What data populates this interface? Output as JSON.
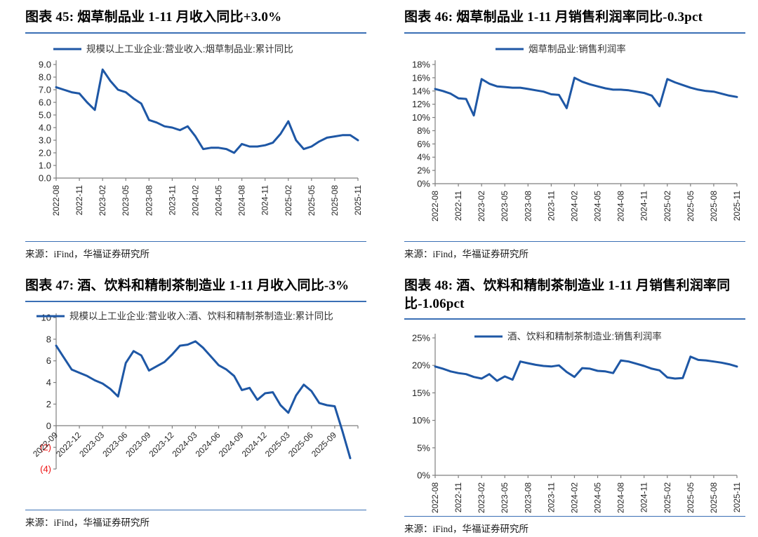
{
  "colors": {
    "line": "#1e57a5",
    "rule": "#3a6fb5",
    "axis": "#7f7f7f",
    "tick_text": "#262626",
    "negative_text": "#ee1111",
    "legend_text": "#333333"
  },
  "panels": [
    {
      "title": "图表 45:  烟草制品业 1-11 月收入同比+3.0%",
      "source": "来源：iFind，华福证券研究所"
    },
    {
      "title": "图表 46:  烟草制品业 1-11 月销售利润率同比-0.3pct",
      "source": "来源：iFind，华福证券研究所"
    },
    {
      "title": "图表 47:  酒、饮料和精制茶制造业 1-11 月收入同比-3%",
      "source": "来源：iFind，华福证券研究所"
    },
    {
      "title": "图表 48:  酒、饮料和精制茶制造业 1-11 月销售利润率同比-1.06pct",
      "source": "来源：iFind，华福证券研究所"
    }
  ],
  "chart_data": [
    {
      "type": "line",
      "title": "烟草制品业 1-11 月收入同比+3.0%",
      "legend": "规模以上工业企业:营业收入:烟草制品业:累计同比",
      "tick_labels": [
        "2022-08",
        "2022-11",
        "2023-02",
        "2023-05",
        "2023-08",
        "2023-11",
        "2024-02",
        "2024-05",
        "2024-08",
        "2024-11",
        "2025-02",
        "2025-05",
        "2025-08",
        "2025-11"
      ],
      "tick_every": 3,
      "values": [
        7.2,
        7.0,
        6.8,
        6.7,
        6.0,
        5.4,
        8.6,
        7.7,
        7.0,
        6.8,
        6.3,
        5.9,
        4.6,
        4.4,
        4.1,
        4.0,
        3.8,
        4.1,
        3.3,
        2.3,
        2.4,
        2.4,
        2.3,
        2.0,
        2.7,
        2.5,
        2.5,
        2.6,
        2.8,
        3.5,
        4.5,
        3.0,
        2.3,
        2.5,
        2.9,
        3.2,
        3.3,
        3.4,
        3.4,
        3.0
      ],
      "ylim": [
        0,
        9
      ],
      "ystep": 1,
      "yfmt": "dec1",
      "xlabel_rotate": 90,
      "end_tick": false,
      "grid": false,
      "legend_position": "top"
    },
    {
      "type": "line",
      "title": "烟草制品业 1-11 月销售利润率同比-0.3pct",
      "legend": "烟草制品业:销售利润率",
      "tick_labels": [
        "2022-08",
        "2022-11",
        "2023-02",
        "2023-05",
        "2023-08",
        "2023-11",
        "2024-02",
        "2024-05",
        "2024-08",
        "2024-11",
        "2025-02",
        "2025-05",
        "2025-08",
        "2025-11"
      ],
      "tick_every": 3,
      "values": [
        14.3,
        14.0,
        13.6,
        12.9,
        12.8,
        10.3,
        15.8,
        15.1,
        14.7,
        14.6,
        14.5,
        14.5,
        14.3,
        14.1,
        13.9,
        13.5,
        13.4,
        11.4,
        16.0,
        15.4,
        15.0,
        14.7,
        14.4,
        14.2,
        14.2,
        14.1,
        13.9,
        13.7,
        13.3,
        11.7,
        15.8,
        15.3,
        14.9,
        14.5,
        14.2,
        14.0,
        13.9,
        13.6,
        13.3,
        13.1
      ],
      "ylim": [
        0,
        18
      ],
      "ystep": 2,
      "yfmt": "pct",
      "xlabel_rotate": 90,
      "end_tick": false,
      "grid": false,
      "legend_position": "top"
    },
    {
      "type": "line",
      "title": "酒、饮料和精制茶制造业 1-11 月收入同比-3%",
      "legend": "规模以上工业企业:营业收入:酒、饮料和精制茶制造业:累计同比",
      "tick_labels": [
        "2022-09",
        "2022-12",
        "2023-03",
        "2023-06",
        "2023-09",
        "2023-12",
        "2024-03",
        "2024-06",
        "2024-09",
        "2024-12",
        "2025-03",
        "2025-06",
        "2025-09"
      ],
      "tick_every": 3,
      "values": [
        7.4,
        6.3,
        5.2,
        4.9,
        4.6,
        4.2,
        3.9,
        3.4,
        2.7,
        5.8,
        6.9,
        6.5,
        5.1,
        5.5,
        5.9,
        6.6,
        7.4,
        7.5,
        7.8,
        7.2,
        6.4,
        5.6,
        5.2,
        4.6,
        3.3,
        3.5,
        2.4,
        3.0,
        3.1,
        1.9,
        1.2,
        2.8,
        3.8,
        3.2,
        2.1,
        1.9,
        1.8,
        -0.5,
        -3.0
      ],
      "ylim": [
        -4,
        10
      ],
      "ystep": 2,
      "yfmt": "paren",
      "xlabel_rotate": 45,
      "end_tick": true,
      "grid": false,
      "legend_position": "top-left"
    },
    {
      "type": "line",
      "title": "酒、饮料和精制茶制造业 1-11 月销售利润率同比-1.06pct",
      "legend": "酒、饮料和精制茶制造业:销售利润率",
      "tick_labels": [
        "2022-08",
        "2022-11",
        "2023-02",
        "2023-05",
        "2023-08",
        "2023-11",
        "2024-02",
        "2024-05",
        "2024-08",
        "2024-11",
        "2025-02",
        "2025-05",
        "2025-08",
        "2025-11"
      ],
      "tick_every": 3,
      "values": [
        19.8,
        19.4,
        18.9,
        18.6,
        18.4,
        17.9,
        17.6,
        18.4,
        17.2,
        18.0,
        17.4,
        20.7,
        20.4,
        20.1,
        19.9,
        19.8,
        20.0,
        18.8,
        17.9,
        19.5,
        19.4,
        19.0,
        18.9,
        18.6,
        20.9,
        20.7,
        20.3,
        19.9,
        19.4,
        19.1,
        17.8,
        17.6,
        17.7,
        21.6,
        21.0,
        20.9,
        20.7,
        20.5,
        20.2,
        19.8
      ],
      "ylim": [
        0,
        25
      ],
      "ystep": 5,
      "yfmt": "pct",
      "xlabel_rotate": 90,
      "end_tick": false,
      "grid": false,
      "legend_position": "top"
    }
  ]
}
